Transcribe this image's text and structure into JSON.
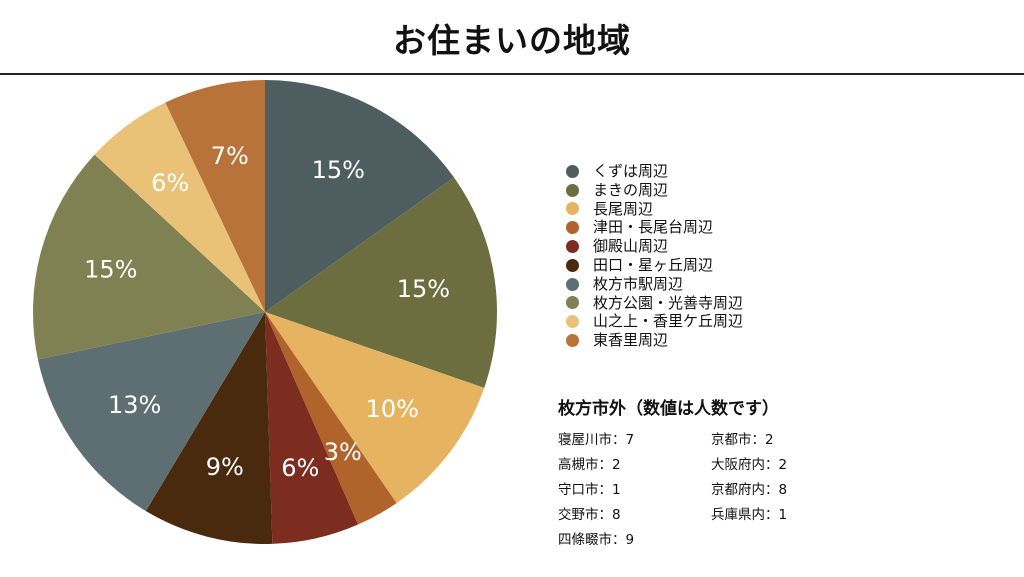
{
  "title": "お住まいの地域",
  "chart_data": {
    "type": "pie",
    "title": "お住まいの地域",
    "categories": [
      "くずは周辺",
      "まきの周辺",
      "長尾周辺",
      "津田・長尾台周辺",
      "御殿山周辺",
      "田口・星ヶ丘周辺",
      "枚方市駅周辺",
      "枚方公園・光善寺周辺",
      "山之上・香里ケ丘周辺",
      "東香里周辺"
    ],
    "values": [
      15,
      15,
      10,
      3,
      6,
      9,
      13,
      15,
      6,
      7
    ],
    "labels": [
      "15%",
      "15%",
      "10%",
      "3%",
      "6%",
      "9%",
      "13%",
      "15%",
      "6%",
      "7%"
    ],
    "colors": [
      "#4d5d60",
      "#6d6e3f",
      "#e6b461",
      "#b0632a",
      "#7c2d20",
      "#4a2a0e",
      "#5e6f73",
      "#7f8153",
      "#eac277",
      "#b8733a"
    ],
    "legend_position": "right"
  },
  "outside": {
    "title": "枚方市外（数値は人数です）",
    "left": [
      "寝屋川市：7",
      "高槻市：2",
      "守口市：1",
      "交野市：8",
      "四條畷市：9"
    ],
    "right": [
      "京都市：2",
      "大阪府内：2",
      "京都府内：8",
      "兵庫県内：1"
    ]
  }
}
